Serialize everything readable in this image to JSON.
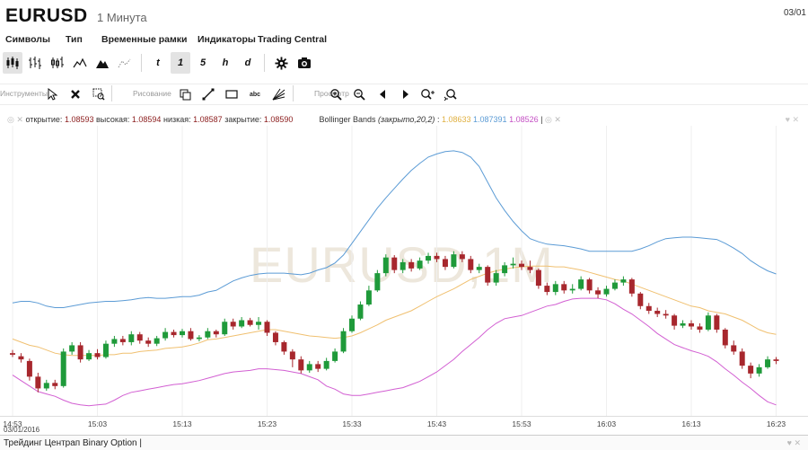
{
  "header": {
    "symbol": "EURUSD",
    "interval": "1 Минута",
    "date": "03/01"
  },
  "menu": [
    "Символы",
    "Тип",
    "Временные рамки",
    "Индикаторы",
    "Trading Central"
  ],
  "toolbar": {
    "chart_types": [
      "candles-icon",
      "bars-icon",
      "hollow-bars-icon",
      "line-icon",
      "mountain-icon",
      "dots-icon"
    ],
    "timeframes": [
      "t",
      "1",
      "5",
      "h",
      "d"
    ],
    "active_timeframe": "1",
    "actions": [
      "gear-icon",
      "camera-icon"
    ]
  },
  "drawbar": {
    "groups": [
      "Инструменты",
      "Рисование",
      "Просмотр"
    ],
    "tools": [
      "pointer-icon",
      "delete-icon",
      "zoom-select-icon"
    ],
    "draw": [
      "duplicate-icon",
      "line-tool-icon",
      "rectangle-tool-icon",
      "abc",
      "fan-tool-icon"
    ],
    "view": [
      "zoom-in-icon",
      "zoom-out-icon",
      "scroll-left-icon",
      "scroll-right-icon",
      "zoom-fit-icon",
      "reset-icon"
    ]
  },
  "legend": {
    "open_label": "открытие:",
    "open": "1.08593",
    "high_label": "высокая:",
    "high": "1.08594",
    "low_label": "низкая:",
    "low": "1.08587",
    "close_label": "закрытие:",
    "close": "1.08590",
    "indicator": "Bollinger Bands",
    "params": "(закрыто,20,2)",
    "bb_mid": "1.08633",
    "bb_upper": "1.087391",
    "bb_lower": "1.08526"
  },
  "watermark": "EURUSD,1M",
  "xaxis": {
    "labels": [
      "14:53",
      "15:03",
      "15:13",
      "15:23",
      "15:33",
      "15:43",
      "15:53",
      "16:03",
      "16:13",
      "16:23"
    ],
    "date": "03/01/2016"
  },
  "bottom": {
    "label": "Трейдинг Центрап Binary Option |"
  },
  "colors": {
    "up": "#1f9a3a",
    "down": "#a7272d",
    "upper": "#5b9bd5",
    "mid": "#f0c070",
    "lower": "#d25fd2"
  },
  "chart_data": {
    "type": "candlestick",
    "indicator": "Bollinger Bands",
    "candles": [
      {
        "o": 1.0857,
        "c": 1.08568,
        "h": 1.08574,
        "l": 1.08565
      },
      {
        "o": 1.08566,
        "c": 1.08562,
        "h": 1.0857,
        "l": 1.08558
      },
      {
        "o": 1.0856,
        "c": 1.0854,
        "h": 1.08563,
        "l": 1.08535
      },
      {
        "o": 1.0854,
        "c": 1.08525,
        "h": 1.08545,
        "l": 1.0852
      },
      {
        "o": 1.08525,
        "c": 1.08532,
        "h": 1.08536,
        "l": 1.08522
      },
      {
        "o": 1.08532,
        "c": 1.08528,
        "h": 1.08536,
        "l": 1.08524
      },
      {
        "o": 1.08528,
        "c": 1.08572,
        "h": 1.08576,
        "l": 1.08526
      },
      {
        "o": 1.08572,
        "c": 1.0858,
        "h": 1.08584,
        "l": 1.08568
      },
      {
        "o": 1.0858,
        "c": 1.08562,
        "h": 1.08584,
        "l": 1.08558
      },
      {
        "o": 1.08562,
        "c": 1.0857,
        "h": 1.08574,
        "l": 1.0856
      },
      {
        "o": 1.0857,
        "c": 1.08565,
        "h": 1.08575,
        "l": 1.08562
      },
      {
        "o": 1.08565,
        "c": 1.08582,
        "h": 1.08586,
        "l": 1.08563
      },
      {
        "o": 1.08582,
        "c": 1.08588,
        "h": 1.08592,
        "l": 1.08578
      },
      {
        "o": 1.08588,
        "c": 1.08584,
        "h": 1.08592,
        "l": 1.0858
      },
      {
        "o": 1.08584,
        "c": 1.08594,
        "h": 1.08598,
        "l": 1.0858
      },
      {
        "o": 1.08594,
        "c": 1.08586,
        "h": 1.08597,
        "l": 1.08582
      },
      {
        "o": 1.08586,
        "c": 1.08582,
        "h": 1.0859,
        "l": 1.08578
      },
      {
        "o": 1.08582,
        "c": 1.08589,
        "h": 1.08592,
        "l": 1.08579
      },
      {
        "o": 1.08589,
        "c": 1.08597,
        "h": 1.08602,
        "l": 1.08586
      },
      {
        "o": 1.08597,
        "c": 1.08593,
        "h": 1.086,
        "l": 1.0859
      },
      {
        "o": 1.08593,
        "c": 1.08598,
        "h": 1.08601,
        "l": 1.0859
      },
      {
        "o": 1.08598,
        "c": 1.08588,
        "h": 1.08602,
        "l": 1.08586
      },
      {
        "o": 1.08588,
        "c": 1.0859,
        "h": 1.08593,
        "l": 1.08585
      },
      {
        "o": 1.0859,
        "c": 1.08598,
        "h": 1.08602,
        "l": 1.08588
      },
      {
        "o": 1.08598,
        "c": 1.08594,
        "h": 1.086,
        "l": 1.0859
      },
      {
        "o": 1.08594,
        "c": 1.0861,
        "h": 1.08614,
        "l": 1.08592
      },
      {
        "o": 1.0861,
        "c": 1.08604,
        "h": 1.08614,
        "l": 1.086
      },
      {
        "o": 1.08604,
        "c": 1.08612,
        "h": 1.08616,
        "l": 1.08602
      },
      {
        "o": 1.08612,
        "c": 1.08606,
        "h": 1.08615,
        "l": 1.08604
      },
      {
        "o": 1.08606,
        "c": 1.0861,
        "h": 1.08616,
        "l": 1.086
      },
      {
        "o": 1.0861,
        "c": 1.08596,
        "h": 1.08612,
        "l": 1.08592
      },
      {
        "o": 1.08596,
        "c": 1.08584,
        "h": 1.08598,
        "l": 1.0858
      },
      {
        "o": 1.08584,
        "c": 1.08572,
        "h": 1.08586,
        "l": 1.08568
      },
      {
        "o": 1.08572,
        "c": 1.08562,
        "h": 1.08575,
        "l": 1.08552
      },
      {
        "o": 1.08562,
        "c": 1.08548,
        "h": 1.08566,
        "l": 1.08544
      },
      {
        "o": 1.08548,
        "c": 1.08556,
        "h": 1.0856,
        "l": 1.08545
      },
      {
        "o": 1.08556,
        "c": 1.0855,
        "h": 1.0856,
        "l": 1.08546
      },
      {
        "o": 1.0855,
        "c": 1.0856,
        "h": 1.08564,
        "l": 1.08548
      },
      {
        "o": 1.0856,
        "c": 1.08572,
        "h": 1.08576,
        "l": 1.08558
      },
      {
        "o": 1.08572,
        "c": 1.08598,
        "h": 1.08602,
        "l": 1.0857
      },
      {
        "o": 1.08598,
        "c": 1.08614,
        "h": 1.08618,
        "l": 1.08596
      },
      {
        "o": 1.08614,
        "c": 1.08632,
        "h": 1.08636,
        "l": 1.08612
      },
      {
        "o": 1.08632,
        "c": 1.0865,
        "h": 1.08656,
        "l": 1.0863
      },
      {
        "o": 1.0865,
        "c": 1.08672,
        "h": 1.08676,
        "l": 1.08648
      },
      {
        "o": 1.08672,
        "c": 1.08692,
        "h": 1.08696,
        "l": 1.08668
      },
      {
        "o": 1.08692,
        "c": 1.08676,
        "h": 1.08695,
        "l": 1.08672
      },
      {
        "o": 1.08676,
        "c": 1.08686,
        "h": 1.0869,
        "l": 1.08672
      },
      {
        "o": 1.08686,
        "c": 1.08678,
        "h": 1.0869,
        "l": 1.08674
      },
      {
        "o": 1.08678,
        "c": 1.08688,
        "h": 1.08692,
        "l": 1.08676
      },
      {
        "o": 1.08688,
        "c": 1.08694,
        "h": 1.08698,
        "l": 1.08684
      },
      {
        "o": 1.08694,
        "c": 1.0869,
        "h": 1.08698,
        "l": 1.08686
      },
      {
        "o": 1.0869,
        "c": 1.0868,
        "h": 1.08694,
        "l": 1.08676
      },
      {
        "o": 1.0868,
        "c": 1.08696,
        "h": 1.087,
        "l": 1.08678
      },
      {
        "o": 1.08696,
        "c": 1.0869,
        "h": 1.087,
        "l": 1.08686
      },
      {
        "o": 1.0869,
        "c": 1.08676,
        "h": 1.08694,
        "l": 1.08672
      },
      {
        "o": 1.08676,
        "c": 1.0868,
        "h": 1.08684,
        "l": 1.08672
      },
      {
        "o": 1.0868,
        "c": 1.0866,
        "h": 1.08682,
        "l": 1.08656
      },
      {
        "o": 1.0866,
        "c": 1.08672,
        "h": 1.08676,
        "l": 1.08656
      },
      {
        "o": 1.08672,
        "c": 1.08682,
        "h": 1.08686,
        "l": 1.08668
      },
      {
        "o": 1.08682,
        "c": 1.08684,
        "h": 1.08692,
        "l": 1.08678
      },
      {
        "o": 1.08684,
        "c": 1.0868,
        "h": 1.08688,
        "l": 1.08676
      },
      {
        "o": 1.0868,
        "c": 1.08676,
        "h": 1.08688,
        "l": 1.08672
      },
      {
        "o": 1.08676,
        "c": 1.08656,
        "h": 1.08678,
        "l": 1.08652
      },
      {
        "o": 1.08656,
        "c": 1.08648,
        "h": 1.0866,
        "l": 1.08644
      },
      {
        "o": 1.08648,
        "c": 1.08658,
        "h": 1.08662,
        "l": 1.08644
      },
      {
        "o": 1.08658,
        "c": 1.0865,
        "h": 1.08662,
        "l": 1.08646
      },
      {
        "o": 1.0865,
        "c": 1.08652,
        "h": 1.08658,
        "l": 1.08646
      },
      {
        "o": 1.08652,
        "c": 1.08664,
        "h": 1.08668,
        "l": 1.0865
      },
      {
        "o": 1.08664,
        "c": 1.0865,
        "h": 1.08666,
        "l": 1.08646
      },
      {
        "o": 1.0865,
        "c": 1.08645,
        "h": 1.08654,
        "l": 1.0864
      },
      {
        "o": 1.08645,
        "c": 1.08652,
        "h": 1.08656,
        "l": 1.08642
      },
      {
        "o": 1.08652,
        "c": 1.0866,
        "h": 1.08664,
        "l": 1.0865
      },
      {
        "o": 1.0866,
        "c": 1.08664,
        "h": 1.08668,
        "l": 1.08656
      },
      {
        "o": 1.08664,
        "c": 1.08646,
        "h": 1.08666,
        "l": 1.08642
      },
      {
        "o": 1.08646,
        "c": 1.0863,
        "h": 1.08648,
        "l": 1.08626
      },
      {
        "o": 1.0863,
        "c": 1.08624,
        "h": 1.08634,
        "l": 1.0862
      },
      {
        "o": 1.08624,
        "c": 1.0862,
        "h": 1.08628,
        "l": 1.08616
      },
      {
        "o": 1.0862,
        "c": 1.08618,
        "h": 1.08625,
        "l": 1.08614
      },
      {
        "o": 1.08618,
        "c": 1.08605,
        "h": 1.0862,
        "l": 1.086
      },
      {
        "o": 1.08605,
        "c": 1.08608,
        "h": 1.08612,
        "l": 1.08602
      },
      {
        "o": 1.08608,
        "c": 1.08604,
        "h": 1.08612,
        "l": 1.086
      },
      {
        "o": 1.08604,
        "c": 1.086,
        "h": 1.08608,
        "l": 1.08596
      },
      {
        "o": 1.086,
        "c": 1.08618,
        "h": 1.08622,
        "l": 1.08598
      },
      {
        "o": 1.08618,
        "c": 1.086,
        "h": 1.0862,
        "l": 1.08596
      },
      {
        "o": 1.086,
        "c": 1.0858,
        "h": 1.08602,
        "l": 1.08576
      },
      {
        "o": 1.0858,
        "c": 1.08572,
        "h": 1.08586,
        "l": 1.08568
      },
      {
        "o": 1.08572,
        "c": 1.08554,
        "h": 1.08576,
        "l": 1.0855
      },
      {
        "o": 1.08554,
        "c": 1.08544,
        "h": 1.08558,
        "l": 1.08538
      },
      {
        "o": 1.08544,
        "c": 1.08552,
        "h": 1.08556,
        "l": 1.0854
      },
      {
        "o": 1.08552,
        "c": 1.08562,
        "h": 1.08566,
        "l": 1.0855
      },
      {
        "o": 1.08562,
        "c": 1.0856,
        "h": 1.08565,
        "l": 1.08556
      }
    ],
    "upper_band": [
      1.08634,
      1.08636,
      1.08636,
      1.08634,
      1.0863,
      1.08628,
      1.08628,
      1.0863,
      1.08632,
      1.08634,
      1.08635,
      1.08636,
      1.08636,
      1.08637,
      1.08638,
      1.0864,
      1.08641,
      1.0864,
      1.0864,
      1.08641,
      1.08642,
      1.08642,
      1.08644,
      1.08648,
      1.0865,
      1.08656,
      1.08662,
      1.08666,
      1.08669,
      1.08671,
      1.08672,
      1.08672,
      1.08672,
      1.08671,
      1.0867,
      1.08672,
      1.08676,
      1.08679,
      1.08685,
      1.08695,
      1.0871,
      1.08725,
      1.0874,
      1.08755,
      1.08768,
      1.0878,
      1.08792,
      1.08803,
      1.08812,
      1.0882,
      1.08824,
      1.08827,
      1.08828,
      1.08826,
      1.0882,
      1.08808,
      1.08788,
      1.08768,
      1.08752,
      1.08738,
      1.08726,
      1.08716,
      1.08712,
      1.08709,
      1.08708,
      1.08707,
      1.08705,
      1.08703,
      1.087,
      1.087,
      1.087,
      1.087,
      1.087,
      1.087,
      1.08703,
      1.08707,
      1.08712,
      1.08716,
      1.08717,
      1.08718,
      1.08718,
      1.08717,
      1.08716,
      1.08715,
      1.0871,
      1.08704,
      1.08697,
      1.08688,
      1.08681,
      1.08675,
      1.08671
    ],
    "middle_band": [
      1.08588,
      1.08584,
      1.0858,
      1.08578,
      1.08574,
      1.0857,
      1.08568,
      1.08567,
      1.08567,
      1.08567,
      1.08567,
      1.08568,
      1.08568,
      1.0857,
      1.0857,
      1.08572,
      1.08573,
      1.08574,
      1.08576,
      1.08577,
      1.08578,
      1.0858,
      1.08583,
      1.08587,
      1.08588,
      1.0859,
      1.08592,
      1.08594,
      1.08596,
      1.08598,
      1.086,
      1.086,
      1.08598,
      1.08596,
      1.08594,
      1.08592,
      1.08591,
      1.0859,
      1.08589,
      1.0859,
      1.08592,
      1.08596,
      1.08601,
      1.08606,
      1.08612,
      1.08616,
      1.0862,
      1.08624,
      1.0863,
      1.08636,
      1.08642,
      1.08647,
      1.08652,
      1.08658,
      1.08664,
      1.08668,
      1.08672,
      1.08675,
      1.08677,
      1.08679,
      1.0868,
      1.08681,
      1.08681,
      1.08681,
      1.0868,
      1.0868,
      1.08678,
      1.08676,
      1.08673,
      1.0867,
      1.08667,
      1.08664,
      1.08662,
      1.08658,
      1.08654,
      1.0865,
      1.08646,
      1.08642,
      1.08638,
      1.08634,
      1.0863,
      1.08628,
      1.08624,
      1.08622,
      1.0862,
      1.08616,
      1.08612,
      1.08606,
      1.086,
      1.08596,
      1.08594
    ],
    "lower_band": [
      1.08542,
      1.08535,
      1.08528,
      1.08521,
      1.08518,
      1.08515,
      1.0851,
      1.08506,
      1.08504,
      1.08503,
      1.08504,
      1.08505,
      1.0851,
      1.08516,
      1.0852,
      1.08522,
      1.08524,
      1.08526,
      1.08528,
      1.0853,
      1.08531,
      1.08533,
      1.08535,
      1.08538,
      1.08541,
      1.08544,
      1.08546,
      1.08547,
      1.08548,
      1.0855,
      1.0855,
      1.08549,
      1.08548,
      1.08546,
      1.08544,
      1.0854,
      1.08536,
      1.08528,
      1.08524,
      1.08518,
      1.08516,
      1.08516,
      1.08518,
      1.0852,
      1.08522,
      1.08524,
      1.08526,
      1.0853,
      1.08534,
      1.0854,
      1.08546,
      1.08554,
      1.08562,
      1.08572,
      1.08581,
      1.0859,
      1.086,
      1.08608,
      1.08614,
      1.08616,
      1.08618,
      1.08622,
      1.08626,
      1.0863,
      1.08632,
      1.08636,
      1.08639,
      1.0864,
      1.0864,
      1.0864,
      1.08638,
      1.08633,
      1.08626,
      1.0862,
      1.08612,
      1.08604,
      1.08595,
      1.08588,
      1.08581,
      1.08577,
      1.08573,
      1.0857,
      1.08566,
      1.08559,
      1.0855,
      1.08542,
      1.08533,
      1.08525,
      1.08516,
      1.08508,
      1.08504
    ],
    "ylim": [
      1.0849,
      1.0886
    ]
  }
}
